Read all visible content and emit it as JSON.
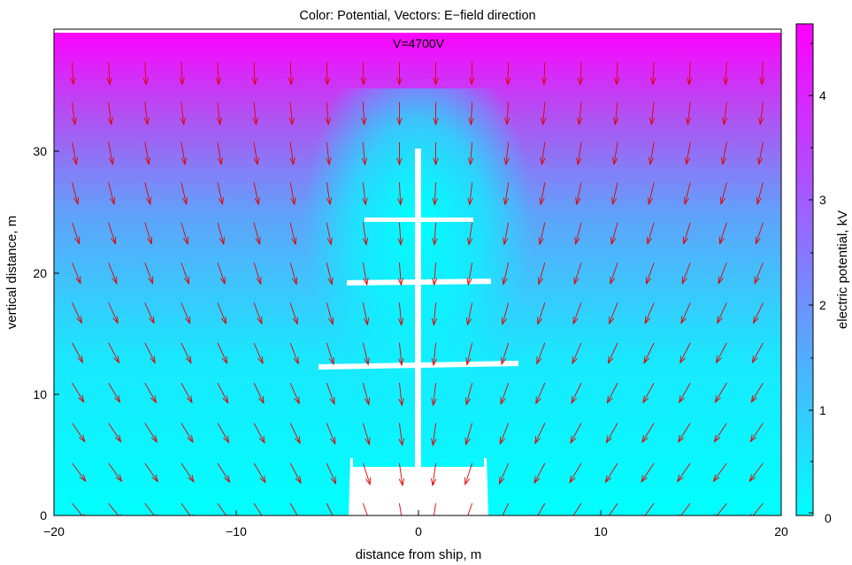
{
  "chart_data": {
    "type": "heatmap",
    "title": "Color: Potential,  Vectors: E−field direction",
    "xlabel": "distance from ship, m",
    "ylabel": "vertical distance, m",
    "colorbar_label": "electric potential, kV",
    "annotation": "V=4700V",
    "xlim": [
      -20,
      20
    ],
    "ylim": [
      0,
      40
    ],
    "x_ticks": [
      -20,
      -10,
      0,
      10,
      20
    ],
    "x_tick_labels": [
      "−20",
      "−10",
      "0",
      "10",
      "20"
    ],
    "y_ticks": [
      0,
      10,
      20,
      30
    ],
    "y_tick_labels": [
      "0",
      "10",
      "20",
      "30"
    ],
    "colorbar_range": [
      0,
      4.7
    ],
    "colorbar_ticks": [
      0,
      1,
      2,
      3,
      4
    ],
    "colorbar_tick_labels": [
      "0",
      "1",
      "2",
      "3",
      "4"
    ],
    "colormap": [
      "#00ffff",
      "#ff00ff"
    ],
    "arrow_color": "#e00000",
    "grid": false,
    "top_electrode_potential_V": 4700,
    "ship_structure_color": "#ffffff"
  }
}
